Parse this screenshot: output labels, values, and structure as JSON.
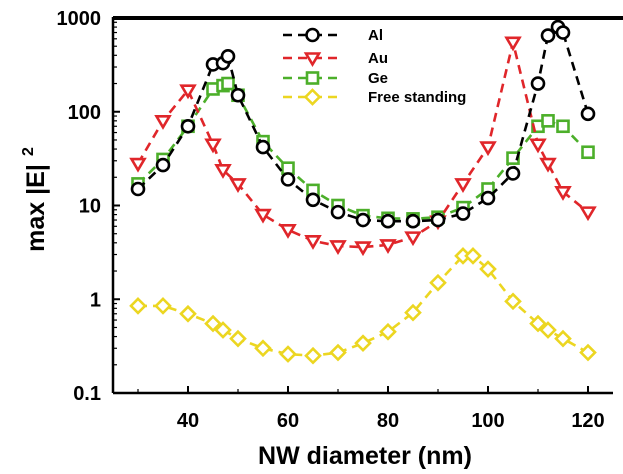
{
  "chart_data": {
    "type": "line",
    "title": "",
    "xlabel": "NW diameter (nm)",
    "ylabel": "max |E|",
    "ylabel_superscript": "2",
    "xlim": [
      25,
      125
    ],
    "ylim": [
      0.1,
      1000
    ],
    "yscale": "log",
    "x_ticks": [
      40,
      60,
      80,
      100,
      120
    ],
    "x_tick_labels": [
      "40",
      "60",
      "80",
      "100",
      "120"
    ],
    "y_ticks": [
      0.1,
      1,
      10,
      100,
      1000
    ],
    "y_tick_labels": [
      "0.1",
      "1",
      "10",
      "100",
      "1000"
    ],
    "grid": false,
    "legend_position": "top-center",
    "series": [
      {
        "name": "Al",
        "color": "#000000",
        "marker": "circle",
        "x": [
          30,
          35,
          40,
          45,
          47,
          48,
          50,
          55,
          60,
          65,
          70,
          75,
          80,
          85,
          90,
          95,
          100,
          105,
          110,
          112,
          114,
          115,
          120
        ],
        "y": [
          15,
          27,
          70,
          320,
          330,
          390,
          150,
          42,
          19,
          11.5,
          8.5,
          7,
          6.8,
          6.8,
          7,
          8.2,
          12,
          22,
          200,
          650,
          800,
          700,
          95
        ]
      },
      {
        "name": "Au",
        "color": "#e0262a",
        "marker": "triangle-down",
        "x": [
          30,
          35,
          40,
          45,
          47,
          50,
          55,
          60,
          65,
          70,
          75,
          80,
          85,
          90,
          95,
          100,
          105,
          110,
          112,
          115,
          120
        ],
        "y": [
          28,
          80,
          170,
          45,
          24,
          17,
          8,
          5.5,
          4.2,
          3.7,
          3.6,
          3.8,
          4.6,
          6.8,
          17,
          42,
          550,
          45,
          28,
          14,
          8.5
        ]
      },
      {
        "name": "Ge",
        "color": "#4caf2a",
        "marker": "square",
        "x": [
          30,
          35,
          40,
          45,
          47,
          48,
          50,
          55,
          60,
          65,
          70,
          75,
          80,
          85,
          90,
          95,
          100,
          105,
          110,
          112,
          115,
          120
        ],
        "y": [
          17,
          31,
          70,
          175,
          190,
          200,
          150,
          48,
          25,
          14.5,
          10,
          7.8,
          7.3,
          7.2,
          7.5,
          9.5,
          15,
          32,
          70,
          80,
          70,
          37
        ]
      },
      {
        "name": "Free standing",
        "color": "#ecd621",
        "marker": "diamond",
        "x": [
          30,
          35,
          40,
          45,
          47,
          50,
          55,
          60,
          65,
          70,
          75,
          80,
          85,
          90,
          95,
          97,
          100,
          105,
          110,
          112,
          115,
          120
        ],
        "y": [
          0.85,
          0.85,
          0.7,
          0.55,
          0.47,
          0.38,
          0.3,
          0.26,
          0.25,
          0.27,
          0.34,
          0.45,
          0.72,
          1.5,
          2.9,
          2.9,
          2.1,
          0.95,
          0.55,
          0.47,
          0.38,
          0.27
        ]
      }
    ]
  }
}
